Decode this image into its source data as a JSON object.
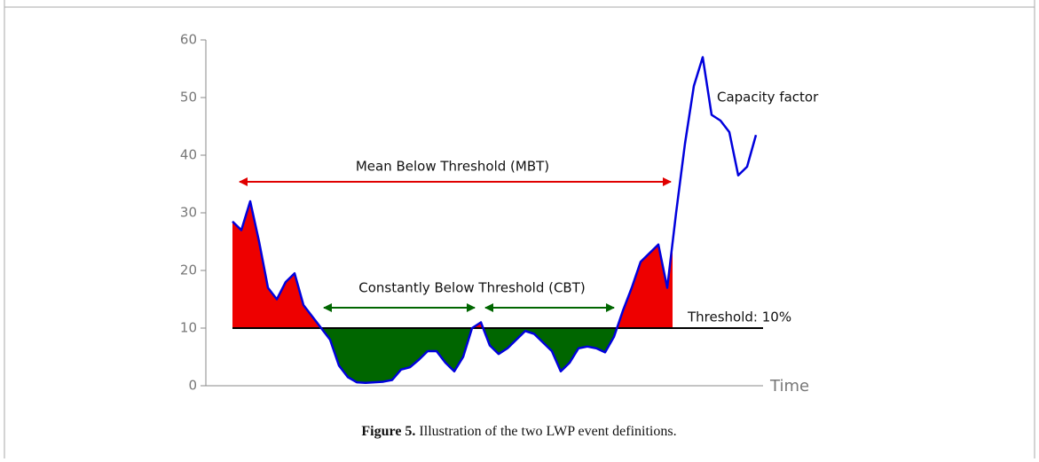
{
  "chart_data": {
    "type": "line",
    "values": [
      28.5,
      27,
      32,
      25,
      17,
      15,
      18,
      19.5,
      14,
      12,
      10,
      8,
      3.5,
      1.5,
      0.6,
      0.5,
      0.6,
      0.7,
      1,
      2.8,
      3.2,
      4.5,
      6,
      6,
      4,
      2.5,
      5,
      10,
      11,
      7,
      5.5,
      6.5,
      8,
      9.5,
      9,
      7.5,
      6,
      2.5,
      4,
      6.5,
      6.8,
      6.5,
      5.8,
      8.5,
      13,
      17,
      21.5,
      23,
      24.5,
      17,
      30,
      42,
      52,
      57,
      47,
      46,
      44,
      36.5,
      38,
      43.5
    ],
    "color": "#0000dd",
    "above_color": "#ee0000",
    "below_color": "#006600",
    "threshold": 10,
    "threshold_label": "Threshold: 10%",
    "ylim": [
      0,
      60
    ],
    "yticks": [
      0,
      10,
      20,
      30,
      40,
      50,
      60
    ],
    "xlabel": "Time",
    "annotations": {
      "mbt": "Mean Below Threshold (MBT)",
      "cbt": "Constantly Below Threshold (CBT)",
      "line": "Capacity factor"
    }
  },
  "caption": {
    "label": "Figure 5.",
    "text": " Illustration of the two LWP event definitions."
  }
}
